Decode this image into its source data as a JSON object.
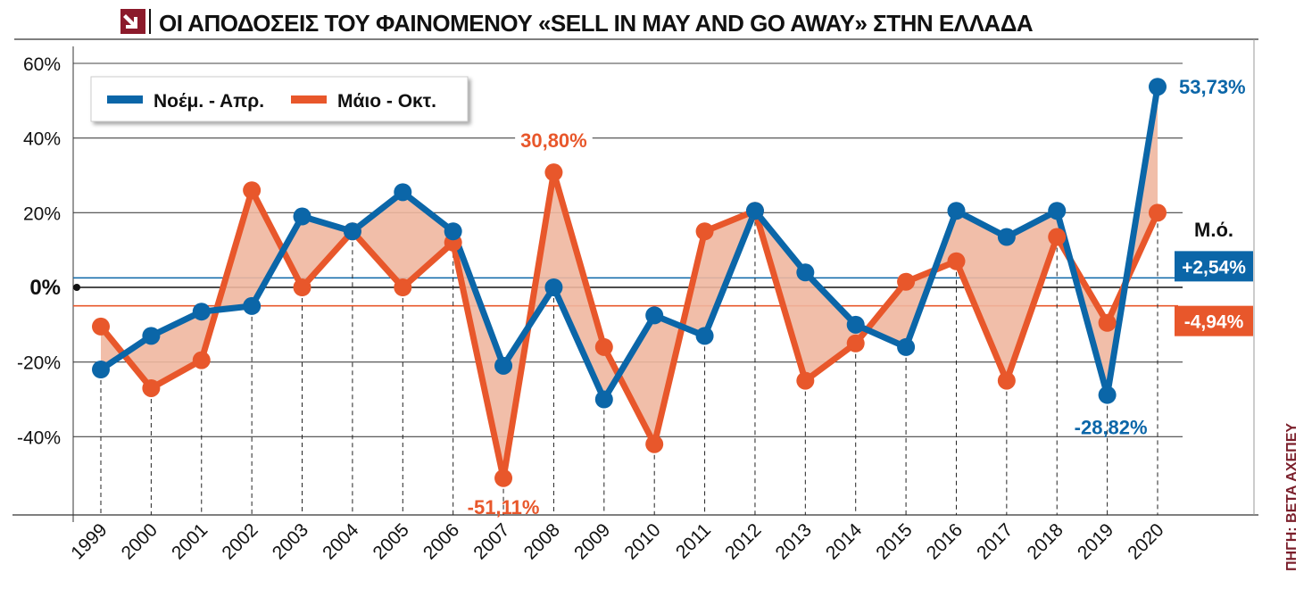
{
  "header": {
    "title": "ΟΙ ΑΠΟΔΟΣΕΙΣ ΤΟΥ ΦΑΙΝΟΜΕΝΟΥ «SELL IN MAY AND GO AWAY» ΣΤΗΝ ΕΛΛΑΔΑ",
    "logo_icon": "arrow-logo-icon",
    "accent_color": "#8b1a2b"
  },
  "source": "ΠΗΓΗ: ΒΕΤΑ ΑΧΕΠΕΥ",
  "colors": {
    "series_blue": "#0b66a8",
    "series_orange": "#e8572b",
    "fill_between": "#f0b7a0"
  },
  "chart_data": {
    "type": "line",
    "title": "ΟΙ ΑΠΟΔΟΣΕΙΣ ΤΟΥ ΦΑΙΝΟΜΕΝΟΥ «SELL IN MAY AND GO AWAY» ΣΤΗΝ ΕΛΛΑΔΑ",
    "xlabel": "",
    "ylabel": "",
    "x": [
      "1999",
      "2000",
      "2001",
      "2002",
      "2003",
      "2004",
      "2005",
      "2006",
      "2007",
      "2008",
      "2009",
      "2010",
      "2011",
      "2012",
      "2013",
      "2014",
      "2015",
      "2016",
      "2017",
      "2018",
      "2019",
      "2020"
    ],
    "y_ticks": [
      {
        "value": 60,
        "label": "60%"
      },
      {
        "value": 40,
        "label": "40%"
      },
      {
        "value": 20,
        "label": "20%"
      },
      {
        "value": 0,
        "label": "0%"
      },
      {
        "value": -20,
        "label": "-20%"
      },
      {
        "value": -40,
        "label": "-40%"
      }
    ],
    "ylim": [
      -61,
      62
    ],
    "grid": true,
    "legend_position": "top-left",
    "series": [
      {
        "name": "Νοέμ. - Απρ.",
        "color": "#0b66a8",
        "values": [
          -22,
          -13,
          -6.5,
          -5,
          19,
          15,
          25.5,
          15,
          -21,
          0,
          -30,
          -7.5,
          -13,
          20.5,
          4,
          -10,
          -16,
          20.5,
          13.5,
          20.5,
          -28.82,
          53.73
        ]
      },
      {
        "name": "Μάιο - Οκτ.",
        "color": "#e8572b",
        "values": [
          -10.5,
          -27,
          -19.5,
          26,
          0,
          15,
          0,
          12,
          -51.11,
          30.8,
          -16,
          -42,
          15,
          20.5,
          -25,
          -15,
          1.5,
          7,
          -25,
          13.5,
          -9.5,
          20
        ]
      }
    ],
    "averages": [
      {
        "label": "+2,54%",
        "value": 2.54,
        "color": "#0b66a8"
      },
      {
        "label": "-4,94%",
        "value": -4.94,
        "color": "#e8572b"
      }
    ],
    "average_header": "Μ.ό.",
    "annotations": [
      {
        "text": "30,80%",
        "year": "2008",
        "series": "Μάιο - Οκτ.",
        "value": 30.8
      },
      {
        "text": "-51,11%",
        "year": "2007",
        "series": "Μάιο - Οκτ.",
        "value": -51.11
      },
      {
        "text": "-28,82%",
        "year": "2019",
        "series": "Νοέμ. - Απρ.",
        "value": -28.82
      },
      {
        "text": "53,73%",
        "year": "2020",
        "series": "Νοέμ. - Απρ.",
        "value": 53.73
      }
    ]
  }
}
